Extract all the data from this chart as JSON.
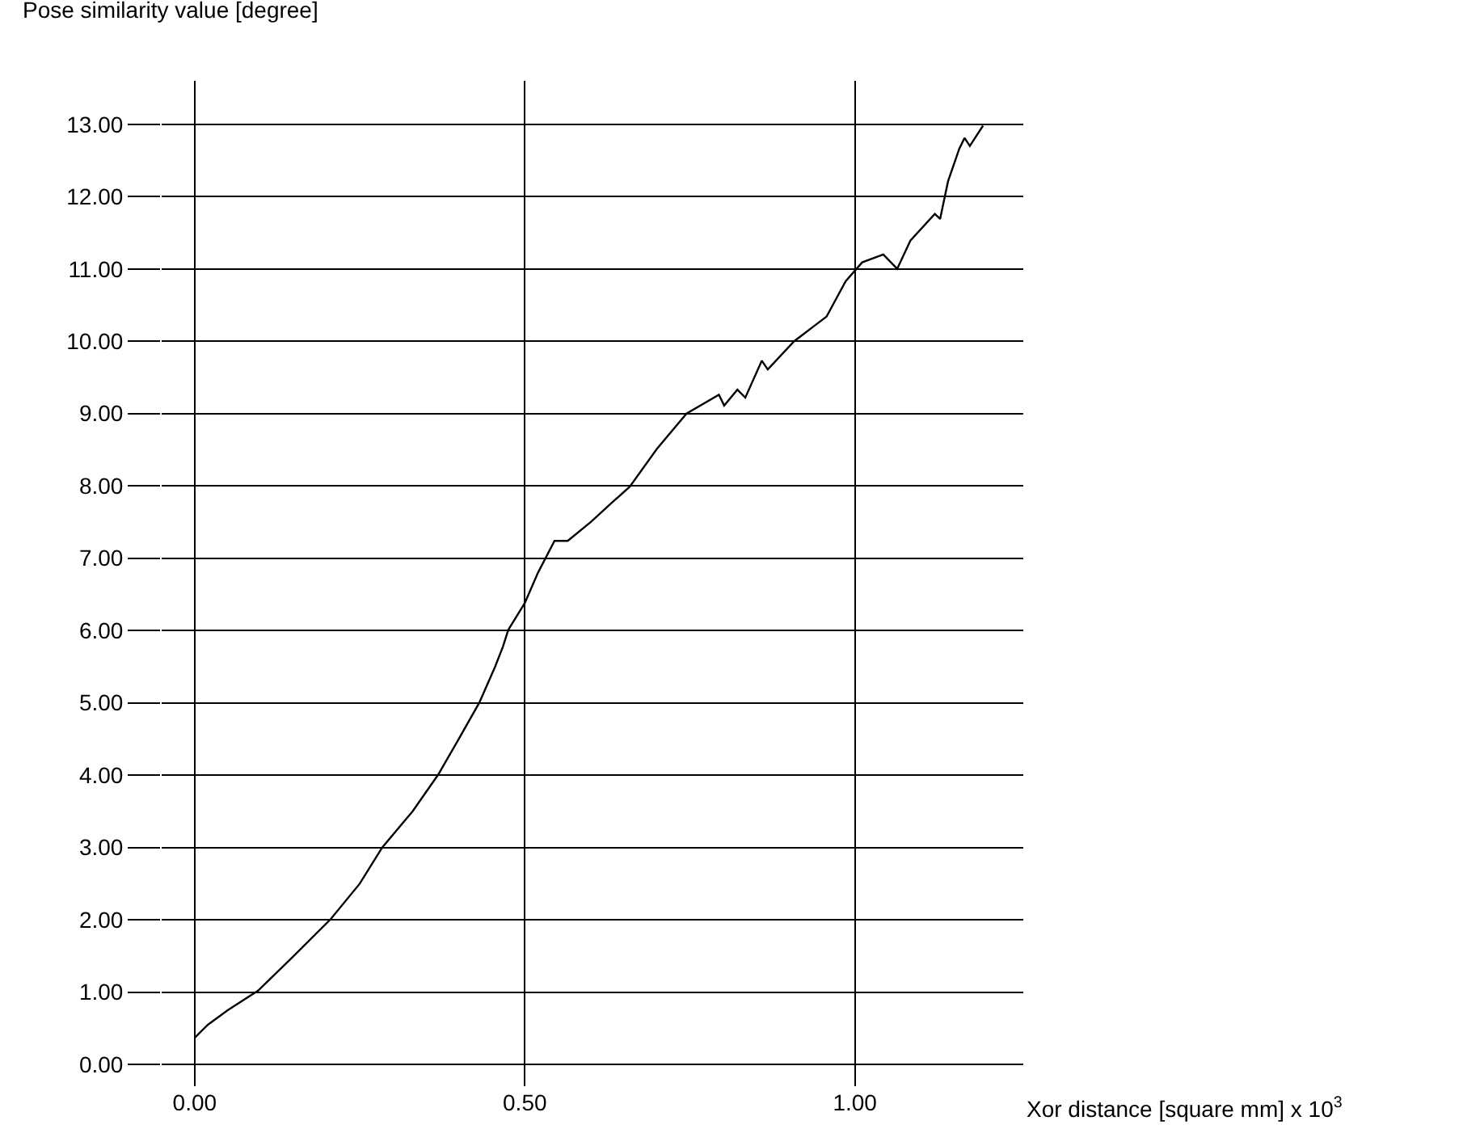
{
  "chart_data": {
    "type": "line",
    "xlabel": "Xor distance [square mm] x 10$^{3}$",
    "ylabel": "Pose similarity value [degree]",
    "x": [
      0,
      0.02,
      0.05,
      0.096,
      0.15,
      0.206,
      0.25,
      0.284,
      0.33,
      0.369,
      0.4,
      0.431,
      0.455,
      0.467,
      0.475,
      0.5,
      0.52,
      0.545,
      0.565,
      0.6,
      0.631,
      0.659,
      0.7,
      0.745,
      0.794,
      0.802,
      0.822,
      0.834,
      0.859,
      0.868,
      0.908,
      0.941,
      0.957,
      0.986,
      1.011,
      1.043,
      1.064,
      1.084,
      1.121,
      1.129,
      1.141,
      1.158,
      1.166,
      1.174,
      1.194
    ],
    "series": [
      {
        "color": "#000000",
        "values": [
          0.37,
          0.55,
          0.75,
          1.02,
          1.5,
          2.01,
          2.5,
          3.0,
          3.5,
          4.01,
          4.5,
          5.0,
          5.5,
          5.78,
          6.01,
          6.38,
          6.8,
          7.24,
          7.24,
          7.5,
          7.76,
          7.99,
          8.51,
          9.0,
          9.26,
          9.11,
          9.33,
          9.22,
          9.73,
          9.61,
          10.0,
          10.23,
          10.34,
          10.83,
          11.09,
          11.2,
          11.0,
          11.39,
          11.76,
          11.69,
          12.21,
          12.66,
          12.81,
          12.7,
          12.98
        ]
      }
    ],
    "xlim": [
      -0.05,
      1.255
    ],
    "ylim": [
      -0.3,
      13.6
    ],
    "xticks": [
      {
        "value": 0,
        "label": "0.00"
      },
      {
        "value": 0.5,
        "label": "0.50"
      },
      {
        "value": 1,
        "label": "1.00"
      }
    ],
    "yticks": [
      {
        "value": 0,
        "label": "0.00"
      },
      {
        "value": 1,
        "label": "1.00"
      },
      {
        "value": 2,
        "label": "2.00"
      },
      {
        "value": 3,
        "label": "3.00"
      },
      {
        "value": 4,
        "label": "4.00"
      },
      {
        "value": 5,
        "label": "5.00"
      },
      {
        "value": 6,
        "label": "6.00"
      },
      {
        "value": 7,
        "label": "7.00"
      },
      {
        "value": 8,
        "label": "8.00"
      },
      {
        "value": 9,
        "label": "9.00"
      },
      {
        "value": 10,
        "label": "10.00"
      },
      {
        "value": 11,
        "label": "11.00"
      },
      {
        "value": 12,
        "label": "12.00"
      },
      {
        "value": 13,
        "label": "13.00"
      }
    ],
    "grid": true,
    "line_style": "solid",
    "marker": "none",
    "legend": false
  }
}
